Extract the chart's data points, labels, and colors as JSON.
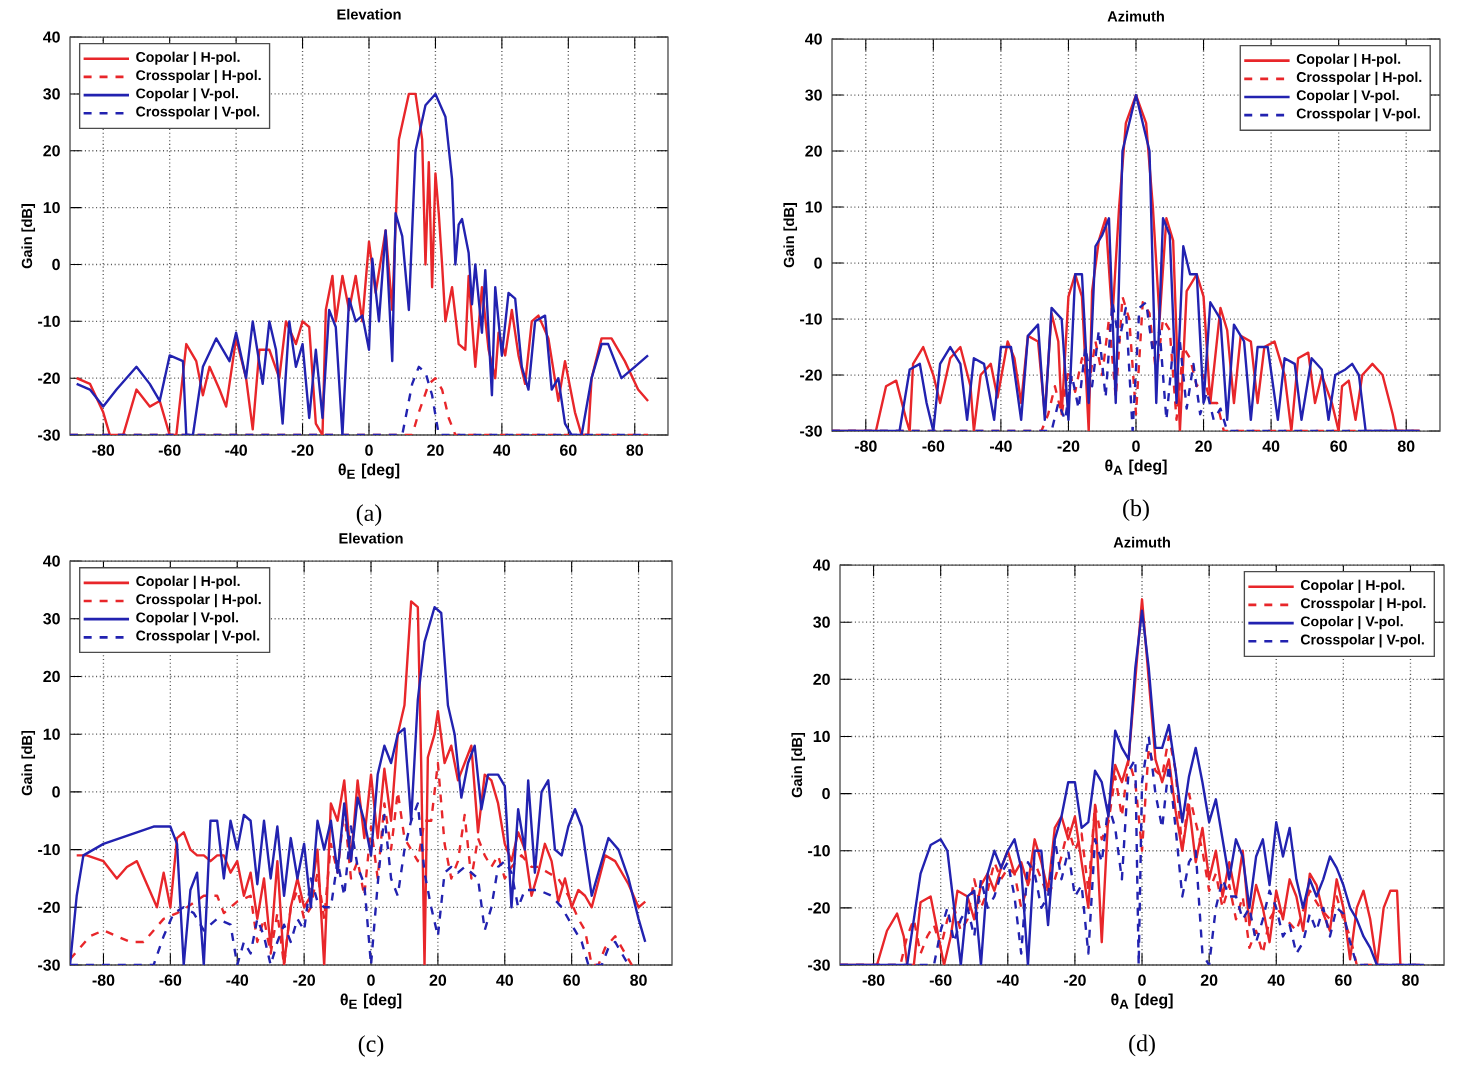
{
  "chart_data": [
    {
      "type": "line",
      "title": "Elevation",
      "xlabel": "θ$_{E}$ [deg]",
      "ylabel": "Gain [dB]",
      "xlim": [
        -90,
        90
      ],
      "ylim": [
        -30,
        40
      ],
      "xticks": [
        -80,
        -60,
        -40,
        -20,
        0,
        20,
        40,
        60,
        80
      ],
      "yticks": [
        -30,
        -20,
        -10,
        0,
        10,
        20,
        30,
        40
      ],
      "grid": true,
      "legend": "top left",
      "annotations": [
        "(a)"
      ],
      "series": [
        {
          "name": "Copolar | H-pol.",
          "color": "#e8262a",
          "line_style": "solid",
          "x": [
            -88,
            -84,
            -80,
            -78,
            -74,
            -70,
            -66,
            -63,
            -60,
            -58,
            -55,
            -52,
            -50,
            -48,
            -45,
            -43,
            -40,
            -37,
            -35,
            -33,
            -30,
            -27,
            -25,
            -22,
            -20,
            -18,
            -16,
            -14,
            -13,
            -11,
            -10,
            -8,
            -6,
            -4,
            -2,
            0,
            2,
            5,
            7,
            9,
            12,
            14,
            16,
            17,
            18,
            19,
            20,
            21,
            22,
            23,
            25,
            27,
            29,
            30,
            32,
            34,
            36,
            38,
            39,
            41,
            43,
            45,
            47,
            49,
            51,
            54,
            57,
            59,
            62,
            64,
            66,
            67,
            70,
            73,
            77,
            81,
            84
          ],
          "values": [
            -20,
            -21,
            -26,
            -30,
            -30,
            -22,
            -25,
            -24,
            -30,
            -30,
            -14,
            -17,
            -23,
            -18,
            -22,
            -25,
            -13,
            -20,
            -29,
            -15,
            -15,
            -20,
            -10,
            -14,
            -10,
            -11,
            -28,
            -30,
            -8,
            -2,
            -10,
            -2,
            -8,
            -2,
            -10,
            4,
            -5,
            6,
            -8,
            22,
            30,
            30,
            22,
            0,
            18,
            -4,
            16,
            9,
            0,
            -10,
            -4,
            -14,
            -15,
            -2,
            -18,
            -4,
            -15,
            -20,
            -12,
            -16,
            -8,
            -16,
            -21,
            -10,
            -9,
            -13,
            -24,
            -17,
            -26,
            -30,
            -30,
            -20,
            -13,
            -13,
            -17,
            -22,
            -24
          ]
        },
        {
          "name": "Crosspolar | H-pol.",
          "color": "#e8262a",
          "line_style": "dashed",
          "x": [
            -90,
            13,
            15,
            18,
            20,
            22,
            24,
            26,
            84
          ],
          "values": [
            -30,
            -30,
            -26,
            -21,
            -20,
            -22,
            -27,
            -30,
            -30
          ]
        },
        {
          "name": "Copolar | V-pol.",
          "color": "#2222b0",
          "line_style": "solid",
          "x": [
            -88,
            -84,
            -80,
            -76,
            -70,
            -66,
            -63,
            -60,
            -56,
            -55,
            -53,
            -50,
            -46,
            -42,
            -40,
            -37,
            -35,
            -32,
            -30,
            -28,
            -26,
            -24,
            -22,
            -20,
            -18,
            -16,
            -14,
            -12,
            -10,
            -8,
            -6,
            -4,
            -2,
            0,
            1,
            3,
            5,
            7,
            8,
            10,
            12,
            14,
            17,
            20,
            23,
            25,
            26,
            27,
            28,
            30,
            31,
            32,
            34,
            35,
            37,
            38,
            40,
            42,
            44,
            46,
            48,
            50,
            53,
            55,
            57,
            59,
            61,
            64,
            67,
            70,
            72,
            76,
            80,
            84
          ],
          "values": [
            -21,
            -22,
            -25,
            -22,
            -18,
            -21,
            -24,
            -16,
            -17,
            -30,
            -30,
            -18,
            -13,
            -17,
            -12,
            -20,
            -10,
            -21,
            -10,
            -15,
            -28,
            -10,
            -18,
            -14,
            -27,
            -15,
            -27,
            -8,
            -11,
            -30,
            -6,
            -10,
            -9,
            -15,
            1,
            -10,
            6,
            -17,
            9,
            5,
            -8,
            20,
            28,
            30,
            26,
            15,
            0,
            7,
            8,
            2,
            -7,
            0,
            -12,
            -1,
            -23,
            -4,
            -16,
            -5,
            -6,
            -18,
            -22,
            -10,
            -9,
            -22,
            -20,
            -28,
            -30,
            -30,
            -20,
            -14,
            -14,
            -20,
            -18,
            -16
          ]
        },
        {
          "name": "Crosspolar | V-pol.",
          "color": "#2222b0",
          "line_style": "dashed",
          "x": [
            -90,
            10,
            11,
            13,
            15,
            17,
            19,
            21,
            84
          ],
          "values": [
            -30,
            -30,
            -27,
            -21,
            -18,
            -19,
            -23,
            -30,
            -30
          ]
        }
      ]
    },
    {
      "type": "line",
      "title": "Azimuth",
      "xlabel": "θ$_{A}$ [deg]",
      "ylabel": "Gain [dB]",
      "xlim": [
        -90,
        90
      ],
      "ylim": [
        -30,
        40
      ],
      "xticks": [
        -80,
        -60,
        -40,
        -20,
        0,
        20,
        40,
        60,
        80
      ],
      "yticks": [
        -30,
        -20,
        -10,
        0,
        10,
        20,
        30,
        40
      ],
      "grid": true,
      "legend": "top right",
      "annotations": [
        "(b)"
      ],
      "series": [
        {
          "name": "Copolar | H-pol.",
          "color": "#e8262a",
          "line_style": "solid",
          "x": [
            -90,
            -77,
            -74,
            -71,
            -68,
            -67,
            -66,
            -63,
            -60,
            -58,
            -55,
            -52,
            -49,
            -48,
            -46,
            -43,
            -41,
            -38,
            -36,
            -34,
            -32,
            -29,
            -27,
            -25,
            -23,
            -22,
            -20,
            -18,
            -16,
            -14,
            -13,
            -11,
            -9,
            -7,
            -5,
            -3,
            0,
            3,
            5,
            7,
            9,
            11,
            13,
            15,
            18,
            20,
            22,
            25,
            27,
            29,
            31,
            34,
            36,
            38,
            41,
            44,
            46,
            48,
            51,
            53,
            55,
            58,
            60,
            61,
            63,
            65,
            67,
            70,
            73,
            76,
            77,
            84
          ],
          "values": [
            -30,
            -30,
            -22,
            -21,
            -28,
            -30,
            -18,
            -15,
            -20,
            -25,
            -17,
            -15,
            -22,
            -30,
            -20,
            -18,
            -24,
            -14,
            -17,
            -25,
            -13,
            -14,
            -27,
            -9,
            -14,
            -27,
            -6,
            -2,
            -6,
            -30,
            -5,
            4,
            8,
            -10,
            10,
            25,
            30,
            25,
            10,
            -10,
            8,
            4,
            -30,
            -5,
            -2,
            -6,
            -25,
            -8,
            -12,
            -25,
            -13,
            -14,
            -25,
            -15,
            -14,
            -20,
            -30,
            -17,
            -16,
            -25,
            -20,
            -25,
            -30,
            -22,
            -21,
            -28,
            -20,
            -18,
            -20,
            -27,
            -30,
            -30
          ]
        },
        {
          "name": "Crosspolar | H-pol.",
          "color": "#e8262a",
          "line_style": "dashed",
          "x": [
            -90,
            -28,
            -26,
            -24,
            -22,
            -20,
            -18,
            -16,
            -14,
            -12,
            -10,
            -8,
            -6,
            -4,
            -2,
            0,
            2,
            4,
            6,
            8,
            10,
            12,
            14,
            16,
            18,
            20,
            22,
            24,
            26,
            84
          ],
          "values": [
            -30,
            -30,
            -27,
            -22,
            -27,
            -19,
            -23,
            -17,
            -22,
            -14,
            -20,
            -10,
            -24,
            -6,
            -10,
            -27,
            -7,
            -9,
            -20,
            -10,
            -12,
            -28,
            -15,
            -17,
            -22,
            -20,
            -25,
            -25,
            -30,
            -30
          ]
        },
        {
          "name": "Copolar | V-pol.",
          "color": "#2222b0",
          "line_style": "solid",
          "x": [
            -90,
            -70,
            -67,
            -64,
            -62,
            -60,
            -58,
            -55,
            -52,
            -50,
            -48,
            -45,
            -42,
            -40,
            -37,
            -34,
            -32,
            -29,
            -27,
            -25,
            -22,
            -20,
            -18,
            -16,
            -14,
            -12,
            -10,
            -8,
            -6,
            -4,
            0,
            4,
            6,
            8,
            10,
            12,
            14,
            16,
            18,
            20,
            22,
            25,
            27,
            29,
            32,
            34,
            36,
            39,
            42,
            44,
            47,
            49,
            52,
            55,
            57,
            59,
            62,
            64,
            66,
            68,
            84
          ],
          "values": [
            -30,
            -30,
            -19,
            -18,
            -25,
            -30,
            -18,
            -15,
            -18,
            -28,
            -17,
            -18,
            -28,
            -15,
            -15,
            -28,
            -13,
            -11,
            -28,
            -8,
            -10,
            -28,
            -2,
            -2,
            -25,
            3,
            5,
            8,
            -25,
            20,
            30,
            20,
            -25,
            8,
            5,
            -25,
            3,
            -2,
            -2,
            -25,
            -7,
            -10,
            -28,
            -11,
            -14,
            -28,
            -15,
            -15,
            -28,
            -17,
            -18,
            -28,
            -17,
            -19,
            -28,
            -20,
            -19,
            -18,
            -20,
            -30,
            -30
          ]
        },
        {
          "name": "Crosspolar | V-pol.",
          "color": "#2222b0",
          "line_style": "dashed",
          "x": [
            -90,
            -25,
            -23,
            -21,
            -19,
            -17,
            -15,
            -13,
            -11,
            -9,
            -7,
            -5,
            -3,
            -1,
            1,
            3,
            5,
            7,
            9,
            11,
            13,
            15,
            17,
            19,
            21,
            23,
            25,
            27,
            84
          ],
          "values": [
            -30,
            -30,
            -25,
            -28,
            -20,
            -26,
            -15,
            -22,
            -12,
            -24,
            -7,
            -14,
            -8,
            -30,
            -8,
            -7,
            -16,
            -12,
            -28,
            -15,
            -14,
            -26,
            -18,
            -27,
            -23,
            -28,
            -26,
            -30,
            -30
          ]
        }
      ]
    },
    {
      "type": "line",
      "title": "Elevation",
      "xlabel": "θ$_{E}$ [deg]",
      "ylabel": "Gain [dB]",
      "xlim": [
        -90,
        90
      ],
      "ylim": [
        -30,
        40
      ],
      "xticks": [
        -80,
        -60,
        -40,
        -20,
        0,
        20,
        40,
        60,
        80
      ],
      "yticks": [
        -30,
        -20,
        -10,
        0,
        10,
        20,
        30,
        40
      ],
      "grid": true,
      "legend": "top left",
      "annotations": [
        "(c)"
      ],
      "series": [
        {
          "name": "Copolar | H-pol.",
          "color": "#e8262a",
          "line_style": "solid",
          "x": [
            -88,
            -85,
            -80,
            -76,
            -73,
            -70,
            -67,
            -64,
            -62,
            -60,
            -58,
            -56,
            -54,
            -52,
            -50,
            -48,
            -46,
            -44,
            -42,
            -40,
            -38,
            -36,
            -34,
            -32,
            -30,
            -28,
            -26,
            -24,
            -22,
            -20,
            -18,
            -16,
            -14,
            -12,
            -10,
            -8,
            -6,
            -4,
            -2,
            0,
            2,
            4,
            6,
            8,
            10,
            12,
            14,
            15,
            16,
            17,
            19,
            20,
            22,
            24,
            26,
            28,
            30,
            32,
            34,
            36,
            38,
            40,
            42,
            44,
            46,
            48,
            50,
            52,
            54,
            56,
            58,
            60,
            62,
            64,
            66,
            70,
            73,
            77,
            80,
            82
          ],
          "values": [
            -11,
            -11,
            -12,
            -15,
            -13,
            -12,
            -16,
            -20,
            -14,
            -20,
            -8,
            -7,
            -10,
            -11,
            -11,
            -12,
            -11,
            -11,
            -14,
            -12,
            -18,
            -14,
            -22,
            -15,
            -27,
            -12,
            -30,
            -20,
            -15,
            -20,
            -18,
            -10,
            -30,
            -2,
            -5,
            2,
            -12,
            2,
            -8,
            3,
            -8,
            4,
            -5,
            10,
            15,
            33,
            32,
            5,
            -30,
            6,
            10,
            14,
            5,
            8,
            2,
            5,
            8,
            -7,
            3,
            2,
            -2,
            -9,
            -12,
            -7,
            -10,
            -18,
            -14,
            -9,
            -12,
            -19,
            -15,
            -20,
            -17,
            -18,
            -20,
            -11,
            -12,
            -16,
            -20,
            -19
          ]
        },
        {
          "name": "Crosspolar | H-pol.",
          "color": "#e8262a",
          "line_style": "dashed",
          "x": [
            -90,
            -87,
            -84,
            -80,
            -76,
            -72,
            -68,
            -65,
            -62,
            -58,
            -55,
            -50,
            -46,
            -44,
            -40,
            -36,
            -34,
            -32,
            -30,
            -28,
            -26,
            -24,
            -22,
            -20,
            -18,
            -16,
            -14,
            -12,
            -10,
            -8,
            -6,
            -4,
            -2,
            0,
            2,
            4,
            6,
            8,
            10,
            12,
            14,
            16,
            18,
            20,
            22,
            24,
            26,
            28,
            30,
            32,
            34,
            36,
            38,
            40,
            42,
            45,
            48,
            50,
            53,
            56,
            59,
            62,
            64,
            66,
            68,
            70,
            73,
            76,
            78
          ],
          "values": [
            -29,
            -27,
            -25,
            -24,
            -25,
            -26,
            -26,
            -24,
            -22,
            -21,
            -20,
            -18,
            -18,
            -21,
            -19,
            -18,
            -26,
            -22,
            -28,
            -21,
            -30,
            -20,
            -17,
            -22,
            -20,
            -14,
            -22,
            -9,
            -14,
            -3,
            -15,
            -12,
            -18,
            -6,
            -15,
            -2,
            -10,
            0,
            -8,
            -10,
            -12,
            -5,
            -5,
            5,
            -9,
            -15,
            -12,
            -4,
            -15,
            -8,
            -11,
            -13,
            -11,
            -15,
            -13,
            -11,
            -13,
            -13,
            -14,
            -15,
            -18,
            -22,
            -24,
            -30,
            -30,
            -27,
            -25,
            -28,
            -30
          ]
        },
        {
          "name": "Copolar | V-pol.",
          "color": "#2222b0",
          "line_style": "solid",
          "x": [
            -90,
            -88,
            -86,
            -80,
            -75,
            -70,
            -65,
            -60,
            -58,
            -56,
            -54,
            -52,
            -50,
            -48,
            -46,
            -44,
            -42,
            -40,
            -38,
            -36,
            -34,
            -32,
            -30,
            -28,
            -26,
            -24,
            -22,
            -20,
            -18,
            -16,
            -14,
            -12,
            -10,
            -8,
            -6,
            -4,
            -2,
            0,
            2,
            4,
            6,
            8,
            10,
            12,
            14,
            16,
            19,
            21,
            23,
            25,
            27,
            29,
            31,
            33,
            35,
            38,
            40,
            42,
            44,
            46,
            47,
            49,
            51,
            53,
            55,
            57,
            59,
            61,
            63,
            66,
            68,
            71,
            74,
            77,
            80,
            82
          ],
          "values": [
            -30,
            -18,
            -11,
            -9,
            -8,
            -7,
            -6,
            -6,
            -9,
            -30,
            -17,
            -14,
            -30,
            -5,
            -5,
            -15,
            -5,
            -10,
            -4,
            -5,
            -16,
            -5,
            -15,
            -6,
            -18,
            -8,
            -15,
            -9,
            -20,
            -5,
            -10,
            -5,
            -14,
            -2,
            -12,
            -1,
            -5,
            -11,
            3,
            8,
            5,
            10,
            11,
            -5,
            16,
            26,
            32,
            31,
            15,
            10,
            -1,
            5,
            8,
            -3,
            3,
            3,
            1,
            -20,
            -3,
            -10,
            2,
            -14,
            0,
            2,
            -10,
            -11,
            -6,
            -3,
            -6,
            -18,
            -14,
            -8,
            -10,
            -15,
            -22,
            -26
          ]
        },
        {
          "name": "Crosspolar | V-pol.",
          "color": "#2222b0",
          "line_style": "dashed",
          "x": [
            -90,
            -65,
            -62,
            -59,
            -56,
            -53,
            -50,
            -46,
            -42,
            -40,
            -38,
            -36,
            -34,
            -32,
            -30,
            -28,
            -26,
            -24,
            -22,
            -20,
            -18,
            -16,
            -14,
            -12,
            -10,
            -8,
            -6,
            -4,
            -2,
            0,
            2,
            4,
            6,
            8,
            10,
            12,
            14,
            16,
            18,
            20,
            22,
            24,
            26,
            28,
            30,
            32,
            34,
            36,
            38,
            40,
            42,
            44,
            46,
            50,
            54,
            57,
            60,
            63,
            65,
            69,
            71,
            73,
            75,
            77
          ],
          "values": [
            -30,
            -30,
            -25,
            -21,
            -20,
            -21,
            -24,
            -22,
            -23,
            -30,
            -26,
            -28,
            -22,
            -25,
            -30,
            -26,
            -23,
            -26,
            -22,
            -24,
            -15,
            -19,
            -20,
            -20,
            -12,
            -18,
            -6,
            -13,
            -16,
            -30,
            -16,
            -4,
            -15,
            -18,
            -10,
            -5,
            -2,
            -14,
            -20,
            -25,
            -14,
            -13,
            -14,
            -13,
            -14,
            -15,
            -24,
            -20,
            -13,
            -12,
            -14,
            -20,
            -17,
            -17,
            -18,
            -20,
            -23,
            -26,
            -30,
            -30,
            -27,
            -26,
            -28,
            -30
          ]
        }
      ]
    },
    {
      "type": "line",
      "title": "Azimuth",
      "xlabel": "θ$_{A}$ [deg]",
      "ylabel": "Gain [dB]",
      "xlim": [
        -90,
        90
      ],
      "ylim": [
        -30,
        40
      ],
      "xticks": [
        -80,
        -60,
        -40,
        -20,
        0,
        20,
        40,
        60,
        80
      ],
      "yticks": [
        -30,
        -20,
        -10,
        0,
        10,
        20,
        30,
        40
      ],
      "grid": true,
      "legend": "top right",
      "annotations": [
        "(d)"
      ],
      "series": [
        {
          "name": "Copolar | H-pol.",
          "color": "#e8262a",
          "line_style": "solid",
          "x": [
            -90,
            -79,
            -76,
            -73,
            -71,
            -70,
            -68,
            -66,
            -63,
            -61,
            -59,
            -57,
            -55,
            -52,
            -50,
            -48,
            -46,
            -44,
            -42,
            -40,
            -38,
            -36,
            -34,
            -32,
            -30,
            -28,
            -26,
            -24,
            -22,
            -20,
            -18,
            -16,
            -14,
            -12,
            -10,
            -8,
            -6,
            -4,
            -2,
            0,
            2,
            4,
            6,
            8,
            10,
            12,
            14,
            16,
            18,
            20,
            22,
            24,
            26,
            28,
            30,
            32,
            34,
            36,
            38,
            40,
            42,
            44,
            46,
            48,
            50,
            52,
            54,
            56,
            58,
            60,
            62,
            64,
            66,
            68,
            70,
            72,
            74,
            76,
            77
          ],
          "values": [
            -30,
            -30,
            -24,
            -21,
            -25,
            -30,
            -30,
            -19,
            -18,
            -24,
            -30,
            -25,
            -17,
            -18,
            -22,
            -16,
            -14,
            -17,
            -13,
            -10,
            -14,
            -12,
            -16,
            -8,
            -12,
            -17,
            -6,
            -4,
            -8,
            -4,
            -12,
            -20,
            -2,
            -26,
            -3,
            5,
            2,
            6,
            20,
            34,
            20,
            6,
            2,
            6,
            -3,
            -10,
            -2,
            -12,
            -6,
            -15,
            -10,
            -18,
            -12,
            -18,
            -10,
            -23,
            -16,
            -20,
            -26,
            -17,
            -22,
            -15,
            -18,
            -24,
            -14,
            -16,
            -21,
            -24,
            -15,
            -20,
            -29,
            -20,
            -17,
            -22,
            -30,
            -20,
            -17,
            -17,
            -30
          ]
        },
        {
          "name": "Crosspolar | H-pol.",
          "color": "#e8262a",
          "line_style": "dashed",
          "x": [
            -90,
            -72,
            -70,
            -68,
            -66,
            -64,
            -62,
            -60,
            -58,
            -56,
            -54,
            -52,
            -50,
            -48,
            -46,
            -44,
            -42,
            -40,
            -38,
            -36,
            -34,
            -32,
            -30,
            -28,
            -26,
            -24,
            -22,
            -20,
            -18,
            -16,
            -14,
            -12,
            -10,
            -8,
            -6,
            -4,
            -2,
            0,
            2,
            4,
            6,
            8,
            10,
            12,
            14,
            16,
            18,
            20,
            22,
            24,
            26,
            28,
            30,
            32,
            34,
            36,
            38,
            40,
            43,
            46,
            50,
            53,
            56,
            58,
            60,
            62,
            64,
            84
          ],
          "values": [
            -30,
            -30,
            -25,
            -22,
            -28,
            -25,
            -23,
            -27,
            -22,
            -20,
            -24,
            -22,
            -15,
            -20,
            -17,
            -12,
            -15,
            -13,
            -14,
            -20,
            -16,
            -12,
            -15,
            -18,
            -15,
            -11,
            -6,
            -10,
            -7,
            -17,
            -2,
            -8,
            -5,
            3,
            -4,
            6,
            2,
            -10,
            8,
            4,
            3,
            10,
            4,
            -10,
            0,
            -5,
            -10,
            -17,
            -14,
            -20,
            -16,
            -22,
            -18,
            -27,
            -24,
            -28,
            -22,
            -20,
            -22,
            -24,
            -17,
            -20,
            -22,
            -18,
            -22,
            -25,
            -30,
            -30
          ]
        },
        {
          "name": "Copolar | V-pol.",
          "color": "#2222b0",
          "line_style": "solid",
          "x": [
            -90,
            -70,
            -68,
            -66,
            -63,
            -60,
            -58,
            -56,
            -54,
            -52,
            -50,
            -48,
            -46,
            -44,
            -42,
            -40,
            -38,
            -36,
            -34,
            -32,
            -30,
            -28,
            -26,
            -24,
            -22,
            -20,
            -18,
            -16,
            -14,
            -12,
            -10,
            -8,
            -6,
            -4,
            -2,
            0,
            2,
            4,
            6,
            8,
            10,
            12,
            14,
            16,
            18,
            20,
            22,
            24,
            26,
            28,
            30,
            32,
            34,
            36,
            38,
            40,
            42,
            44,
            46,
            48,
            50,
            52,
            54,
            56,
            58,
            60,
            62,
            64,
            66,
            68,
            70,
            84
          ],
          "values": [
            -30,
            -30,
            -22,
            -14,
            -9,
            -8,
            -10,
            -20,
            -30,
            -18,
            -17,
            -30,
            -14,
            -10,
            -13,
            -10,
            -8,
            -13,
            -30,
            -10,
            -10,
            -23,
            -8,
            -4,
            2,
            2,
            -6,
            -5,
            4,
            2,
            -4,
            11,
            8,
            6,
            22,
            32,
            22,
            8,
            8,
            12,
            4,
            -5,
            3,
            8,
            2,
            -5,
            -1,
            -8,
            -15,
            -8,
            -11,
            -20,
            -11,
            -8,
            -16,
            -5,
            -11,
            -6,
            -15,
            -20,
            -15,
            -18,
            -15,
            -11,
            -13,
            -16,
            -20,
            -22,
            -25,
            -27,
            -30,
            -30
          ]
        },
        {
          "name": "Crosspolar | V-pol.",
          "color": "#2222b0",
          "line_style": "dashed",
          "x": [
            -90,
            -62,
            -60,
            -58,
            -56,
            -54,
            -52,
            -50,
            -48,
            -46,
            -44,
            -42,
            -40,
            -38,
            -36,
            -34,
            -32,
            -30,
            -28,
            -26,
            -24,
            -22,
            -20,
            -18,
            -16,
            -14,
            -12,
            -10,
            -8,
            -6,
            -4,
            -2,
            -1,
            0,
            2,
            4,
            6,
            8,
            10,
            12,
            14,
            16,
            18,
            20,
            22,
            24,
            26,
            28,
            30,
            32,
            34,
            36,
            38,
            40,
            42,
            44,
            46,
            48,
            50,
            52,
            54,
            56,
            58,
            60,
            62,
            64,
            84
          ],
          "values": [
            -30,
            -30,
            -24,
            -20,
            -26,
            -22,
            -20,
            -25,
            -15,
            -20,
            -18,
            -14,
            -12,
            -18,
            -28,
            -12,
            -14,
            -20,
            -18,
            -8,
            -15,
            -10,
            -18,
            -16,
            -28,
            -8,
            -12,
            -2,
            -6,
            -15,
            4,
            6,
            -30,
            2,
            10,
            0,
            -6,
            5,
            -6,
            -18,
            -12,
            -10,
            -28,
            -30,
            -20,
            -15,
            -18,
            -18,
            -22,
            -20,
            -26,
            -22,
            -17,
            -20,
            -25,
            -23,
            -28,
            -26,
            -21,
            -24,
            -20,
            -25,
            -20,
            -21,
            -26,
            -30,
            -30
          ]
        }
      ]
    }
  ]
}
